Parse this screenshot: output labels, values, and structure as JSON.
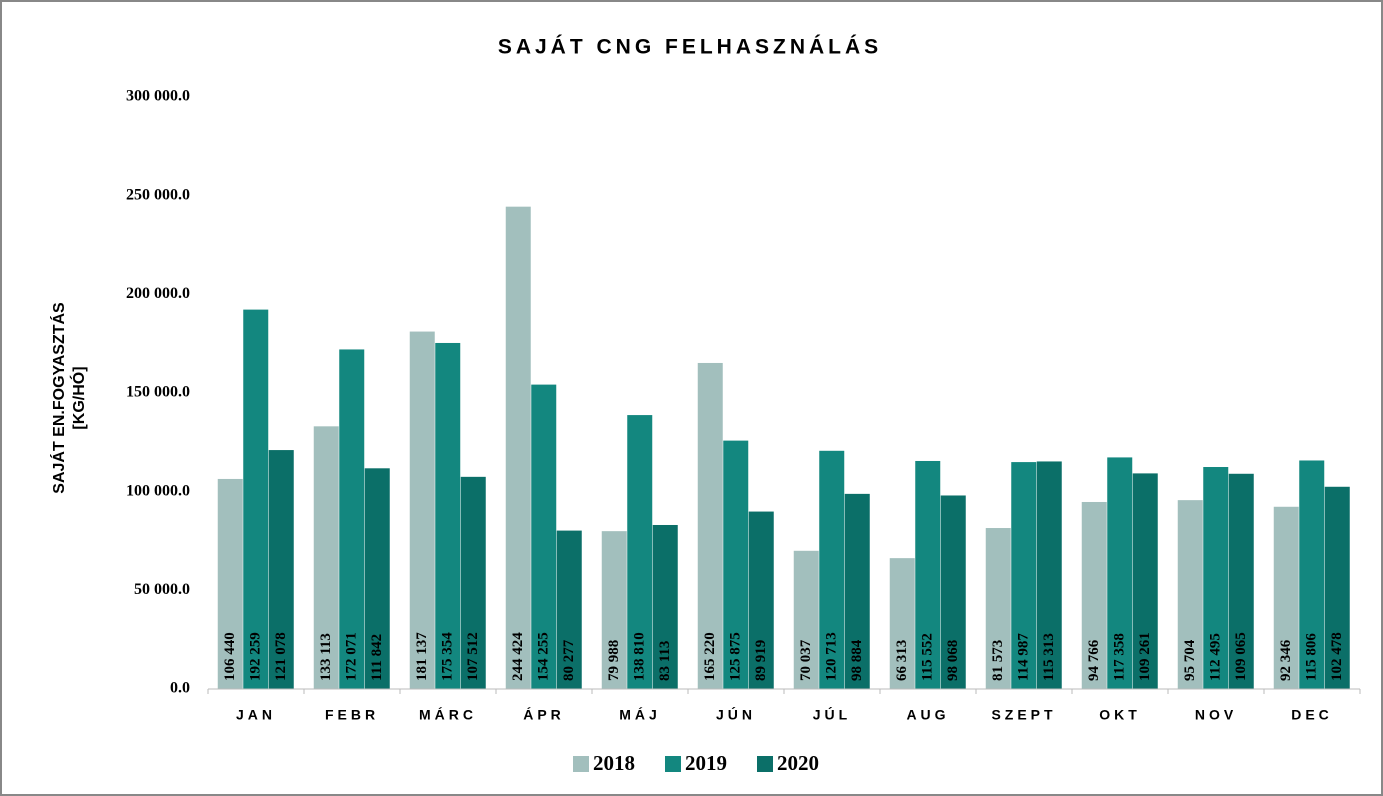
{
  "chart_data": {
    "type": "bar",
    "title": "SAJÁT CNG FELHASZNÁLÁS",
    "ylabel": [
      "SAJÁT EN.FOGYASZTÁS",
      "[KG/HÓ]"
    ],
    "categories": [
      "JAN",
      "FEBR",
      "MÁRC",
      "ÁPR",
      "MÁJ",
      "JÚN",
      "JÚL",
      "AUG",
      "SZEPT",
      "OKT",
      "NOV",
      "DEC"
    ],
    "series": [
      {
        "name": "2018",
        "color": "#a2bfbd",
        "values": [
          106440,
          133113,
          181137,
          244424,
          79988,
          165220,
          70037,
          66313,
          81573,
          94766,
          95704,
          92346
        ],
        "value_labels": [
          "106 440",
          "133 113",
          "181 137",
          "244 424",
          "79 988",
          "165 220",
          "70 037",
          "66 313",
          "81 573",
          "94 766",
          "95 704",
          "92 346"
        ]
      },
      {
        "name": "2019",
        "color": "#13877f",
        "values": [
          192259,
          172071,
          175354,
          154255,
          138810,
          125875,
          120713,
          115552,
          114987,
          117358,
          112495,
          115806
        ],
        "value_labels": [
          "192 259",
          "172 071",
          "175 354",
          "154 255",
          "138 810",
          "125 875",
          "120 713",
          "115 552",
          "114 987",
          "117 358",
          "112 495",
          "115 806"
        ]
      },
      {
        "name": "2020",
        "color": "#0b6f68",
        "values": [
          121078,
          111842,
          107512,
          80277,
          83113,
          89919,
          98884,
          98068,
          115313,
          109261,
          109065,
          102478
        ],
        "value_labels": [
          "121 078",
          "111 842",
          "107 512",
          "80 277",
          "83 113",
          "89 919",
          "98 884",
          "98 068",
          "115 313",
          "109 261",
          "109 065",
          "102 478"
        ]
      }
    ],
    "ylim": [
      0,
      300000
    ],
    "yticks": [
      {
        "value": 0,
        "label": "0.0"
      },
      {
        "value": 50000,
        "label": "50 000.0"
      },
      {
        "value": 100000,
        "label": "100 000.0"
      },
      {
        "value": 150000,
        "label": "150 000.0"
      },
      {
        "value": 200000,
        "label": "200 000.0"
      },
      {
        "value": 250000,
        "label": "250 000.0"
      },
      {
        "value": 300000,
        "label": "300 000.0"
      }
    ],
    "grid": false,
    "legend": "bottom"
  }
}
